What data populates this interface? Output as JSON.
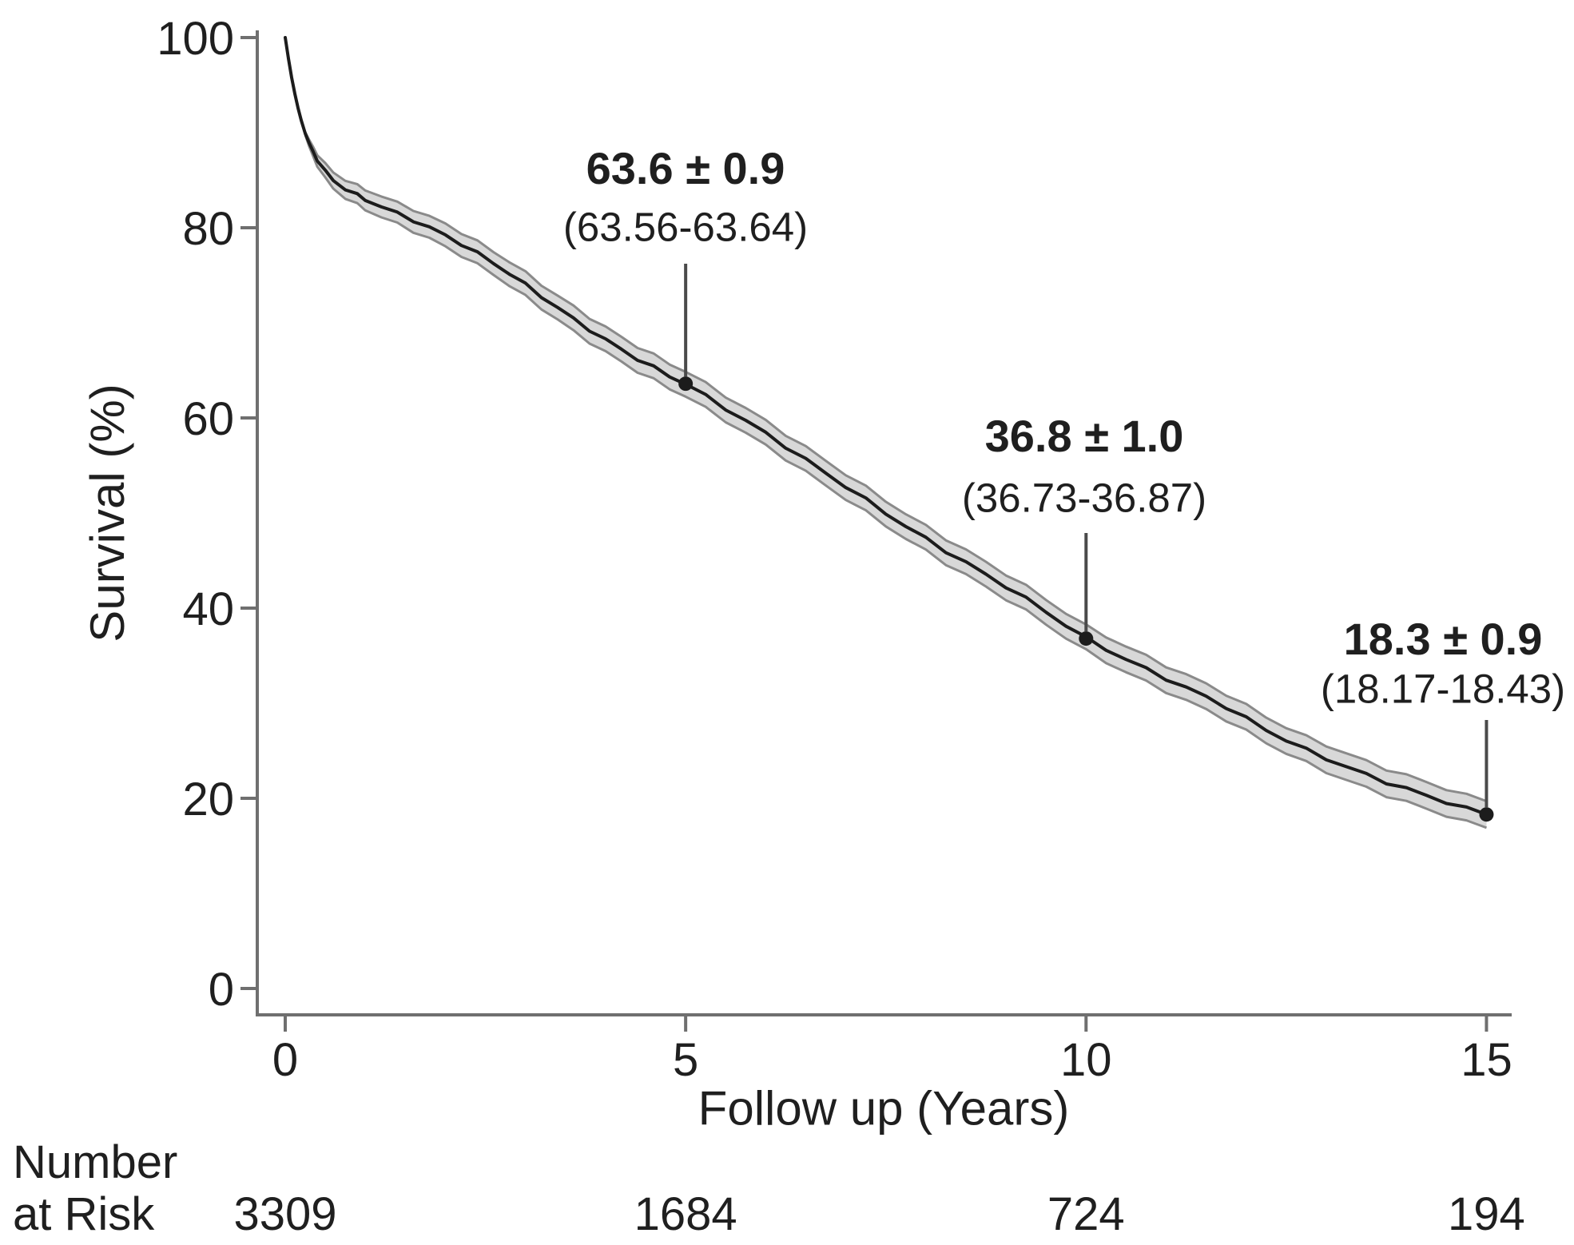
{
  "chart_data": {
    "type": "line",
    "subtype": "kaplan-meier-survival-with-confidence-band",
    "title": "",
    "xlabel": "Follow up (Years)",
    "ylabel": "Survival (%)",
    "x_ticks": [
      0,
      5,
      10,
      15
    ],
    "y_ticks": [
      100,
      80,
      60,
      40,
      20,
      0
    ],
    "xlim": [
      0,
      15
    ],
    "ylim": [
      0,
      100
    ],
    "grid": false,
    "legend": null,
    "series": [
      {
        "x": [
          0,
          0.04,
          0.08,
          0.12,
          0.16,
          0.2,
          0.25,
          0.3,
          0.35,
          0.4,
          0.5,
          0.6,
          0.75,
          0.9,
          1,
          1.2,
          1.4,
          1.6,
          1.8,
          2,
          2.2,
          2.4,
          2.6,
          2.8,
          3,
          3.2,
          3.4,
          3.6,
          3.8,
          4,
          4.2,
          4.4,
          4.6,
          4.8,
          5,
          5.25,
          5.5,
          5.75,
          6,
          6.25,
          6.5,
          6.75,
          7,
          7.25,
          7.5,
          7.75,
          8,
          8.25,
          8.5,
          8.75,
          9,
          9.25,
          9.5,
          9.75,
          10,
          10.25,
          10.5,
          10.75,
          11,
          11.25,
          11.5,
          11.75,
          12,
          12.25,
          12.5,
          12.75,
          13,
          13.25,
          13.5,
          13.75,
          14,
          14.25,
          14.5,
          14.75,
          15
        ],
        "y": [
          100,
          97.8,
          95.8,
          94.1,
          92.6,
          91.3,
          89.9,
          88.8,
          87.9,
          87.2,
          85.9,
          85,
          84.1,
          83.4,
          83,
          82.2,
          81.5,
          80.8,
          80,
          79.2,
          78.3,
          77.3,
          76.3,
          75.2,
          74,
          72.8,
          71.6,
          70.4,
          69.3,
          68.2,
          67.2,
          66.2,
          65.3,
          64.4,
          63.6,
          62.3,
          61,
          59.7,
          58.4,
          57,
          55.6,
          54.2,
          52.8,
          51.4,
          50,
          48.6,
          47.3,
          46,
          44.8,
          43.5,
          42.3,
          41,
          39.6,
          38.2,
          36.8,
          35.7,
          34.6,
          33.6,
          32.6,
          31.6,
          30.7,
          29.6,
          28.4,
          27.2,
          26.1,
          25.1,
          24.2,
          23.3,
          22.5,
          21.7,
          21,
          20.3,
          19.6,
          18.9,
          18.3
        ],
        "ci_halfwidth": [
          0,
          0,
          0,
          0,
          0,
          0,
          0.15,
          0.35,
          0.5,
          0.6,
          0.75,
          0.85,
          0.95,
          1,
          1.05,
          1.1,
          1.1,
          1.15,
          1.15,
          1.2,
          1.2,
          1.2,
          1.2,
          1.25,
          1.25,
          1.25,
          1.25,
          1.3,
          1.3,
          1.3,
          1.3,
          1.3,
          1.3,
          1.3,
          1.3,
          1.3,
          1.3,
          1.3,
          1.3,
          1.3,
          1.3,
          1.3,
          1.3,
          1.3,
          1.3,
          1.3,
          1.3,
          1.3,
          1.3,
          1.3,
          1.3,
          1.3,
          1.3,
          1.3,
          1.3,
          1.35,
          1.35,
          1.35,
          1.35,
          1.35,
          1.35,
          1.35,
          1.35,
          1.35,
          1.35,
          1.35,
          1.4,
          1.4,
          1.4,
          1.4,
          1.4,
          1.4,
          1.4,
          1.4,
          1.4
        ]
      }
    ],
    "annotations": [
      {
        "x": 5,
        "y": 63.6,
        "value_label": "63.6 ± 0.9",
        "ci_label": "(63.56-63.64)"
      },
      {
        "x": 10,
        "y": 36.8,
        "value_label": "36.8 ± 1.0",
        "ci_label": "(36.73-36.87)"
      },
      {
        "x": 15,
        "y": 18.3,
        "value_label": "18.3 ± 0.9",
        "ci_label": "(18.17-18.43)"
      }
    ],
    "risk_table": {
      "label_lines": [
        "Number",
        "at Risk"
      ],
      "times": [
        0,
        5,
        10,
        15
      ],
      "counts": [
        3309,
        1684,
        724,
        194
      ]
    },
    "colors": {
      "curve": "#1c1c1c",
      "ci_fill": "#d8d8d8",
      "ci_edge": "#8a8a8a",
      "axis": "#6f6f6f",
      "text": "#1f1f1f",
      "annotation_line": "#4a4a4a",
      "background": "#ffffff"
    }
  }
}
